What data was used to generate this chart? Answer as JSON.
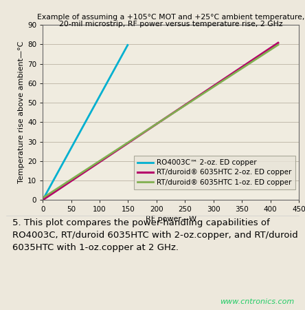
{
  "title_line1": "Example of assuming a +105°C MOT and +25°C ambient temperature,",
  "title_line2": "20-mil microstrip, RF power versus temperature rise, 2 GHz",
  "xlabel": "RF power—W",
  "ylabel": "Temperature rise above ambient—°C",
  "xlim": [
    0,
    450
  ],
  "ylim": [
    0,
    90
  ],
  "xticks": [
    0,
    50,
    100,
    150,
    200,
    250,
    300,
    350,
    400,
    450
  ],
  "yticks": [
    0,
    10,
    20,
    30,
    40,
    50,
    60,
    70,
    80,
    90
  ],
  "bg_color": "#ede8dc",
  "plot_bg_color": "#f0ece0",
  "lines": [
    {
      "label": "RO4003C™ 2-oz. ED copper",
      "color": "#00b0d0",
      "x": [
        0,
        150
      ],
      "y": [
        0,
        80
      ],
      "linewidth": 2.0
    },
    {
      "label": "RT/duroid® 6035HTC 2-oz. ED copper",
      "color": "#b5006a",
      "x": [
        0,
        415
      ],
      "y": [
        0,
        81
      ],
      "linewidth": 2.2
    },
    {
      "label": "RT/duroid® 6035HTC 1-oz. ED copper",
      "color": "#80b050",
      "x": [
        0,
        415
      ],
      "y": [
        1,
        80
      ],
      "linewidth": 2.0
    }
  ],
  "caption_line1": "5. This plot compares the power-handling capabilities of",
  "caption_line2": "RO4003C, RT/duroid 6035HTC with 2-oz.copper, and RT/duroid",
  "caption_line3": "6035HTC with 1-oz.copper at 2 GHz.",
  "watermark": "www.cntronics.com",
  "title_fontsize": 7.8,
  "axis_label_fontsize": 8.0,
  "tick_fontsize": 7.5,
  "legend_fontsize": 7.5,
  "caption_fontsize": 9.5
}
